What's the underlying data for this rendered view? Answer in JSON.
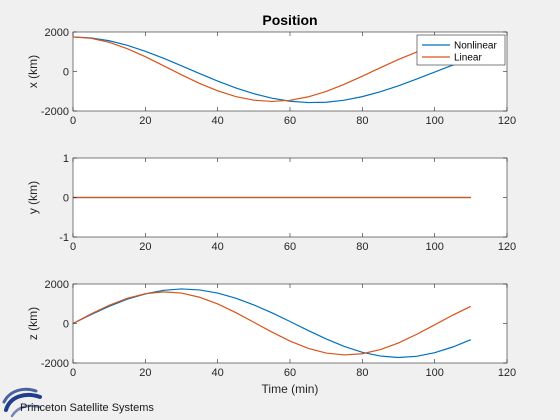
{
  "figure": {
    "background": "#f0f0f0",
    "footer": {
      "logo_text": "Princeton Satellite Systems",
      "logo_color": "#1f3f8c"
    }
  },
  "chart_data": [
    {
      "type": "line",
      "title": "Position",
      "xlabel": "",
      "ylabel": "x (km)",
      "xlim": [
        0,
        120
      ],
      "ylim": [
        -2000,
        2000
      ],
      "xticks": [
        0,
        20,
        40,
        60,
        80,
        100,
        120
      ],
      "yticks": [
        -2000,
        0,
        2000
      ],
      "grid": false,
      "legend": {
        "placement": "top-right",
        "entries": [
          "Nonlinear",
          "Linear"
        ]
      },
      "series": [
        {
          "name": "Nonlinear",
          "color": "#0072bd",
          "x": [
            0,
            5,
            10,
            15,
            20,
            25,
            30,
            35,
            40,
            45,
            50,
            55,
            60,
            65,
            70,
            75,
            80,
            85,
            90,
            95,
            100,
            105,
            110
          ],
          "y": [
            1750,
            1701,
            1556,
            1326,
            1024,
            672,
            289,
            -104,
            -484,
            -830,
            -1125,
            -1353,
            -1505,
            -1573,
            -1556,
            -1453,
            -1272,
            -1024,
            -723,
            -385,
            -28,
            326,
            660
          ]
        },
        {
          "name": "Linear",
          "color": "#d95319",
          "x": [
            0,
            5,
            10,
            15,
            20,
            25,
            30,
            35,
            40,
            45,
            50,
            55,
            60,
            65,
            70,
            75,
            80,
            85,
            90,
            95,
            100,
            105,
            110
          ],
          "y": [
            1750,
            1680,
            1476,
            1156,
            750,
            295,
            -168,
            -605,
            -980,
            -1269,
            -1452,
            -1517,
            -1460,
            -1286,
            -1009,
            -650,
            -238,
            194,
            612,
            984,
            1282,
            1485,
            1577
          ]
        }
      ]
    },
    {
      "type": "line",
      "title": "",
      "xlabel": "",
      "ylabel": "y (km)",
      "xlim": [
        0,
        120
      ],
      "ylim": [
        -1,
        1
      ],
      "xticks": [
        0,
        20,
        40,
        60,
        80,
        100,
        120
      ],
      "yticks": [
        -1,
        0,
        1
      ],
      "grid": false,
      "series": [
        {
          "name": "Nonlinear",
          "color": "#0072bd",
          "x": [
            0,
            110
          ],
          "y": [
            0,
            0
          ]
        },
        {
          "name": "Linear",
          "color": "#d95319",
          "x": [
            0,
            110
          ],
          "y": [
            0,
            0
          ]
        }
      ]
    },
    {
      "type": "line",
      "title": "",
      "xlabel": "Time (min)",
      "ylabel": "z (km)",
      "xlim": [
        0,
        120
      ],
      "ylim": [
        -2000,
        2000
      ],
      "xticks": [
        0,
        20,
        40,
        60,
        80,
        100,
        120
      ],
      "yticks": [
        -2000,
        0,
        2000
      ],
      "grid": false,
      "series": [
        {
          "name": "Nonlinear",
          "color": "#0072bd",
          "x": [
            0,
            5,
            10,
            15,
            20,
            25,
            30,
            35,
            40,
            45,
            50,
            55,
            60,
            65,
            70,
            75,
            80,
            85,
            90,
            95,
            100,
            105,
            110
          ],
          "y": [
            0,
            450,
            870,
            1230,
            1500,
            1680,
            1750,
            1700,
            1540,
            1280,
            940,
            540,
            100,
            -350,
            -780,
            -1160,
            -1460,
            -1650,
            -1720,
            -1660,
            -1480,
            -1190,
            -820
          ]
        },
        {
          "name": "Linear",
          "color": "#d95319",
          "x": [
            0,
            5,
            10,
            15,
            20,
            25,
            30,
            35,
            40,
            45,
            50,
            55,
            60,
            65,
            70,
            75,
            80,
            85,
            90,
            95,
            100,
            105,
            110
          ],
          "y": [
            0,
            485,
            924,
            1276,
            1510,
            1600,
            1540,
            1330,
            990,
            554,
            65,
            -433,
            -888,
            -1255,
            -1497,
            -1591,
            -1530,
            -1320,
            -982,
            -550,
            -66,
            423,
            870
          ]
        }
      ]
    }
  ]
}
